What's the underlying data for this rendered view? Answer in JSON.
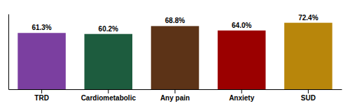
{
  "chart_data": {
    "type": "bar",
    "categories": [
      "TRD",
      "Cardiometabolic",
      "Any pain",
      "Anxiety",
      "SUD"
    ],
    "values": [
      61.3,
      60.2,
      68.8,
      64.0,
      72.4
    ],
    "value_labels": [
      "61.3%",
      "60.2%",
      "68.8%",
      "64.0%",
      "72.4%"
    ],
    "colors": [
      "#7B3FA0",
      "#1D5C3E",
      "#5C3317",
      "#9B0000",
      "#B8860B"
    ],
    "ylim": [
      0,
      82
    ],
    "data_labels": true,
    "tick_labels": "x"
  }
}
